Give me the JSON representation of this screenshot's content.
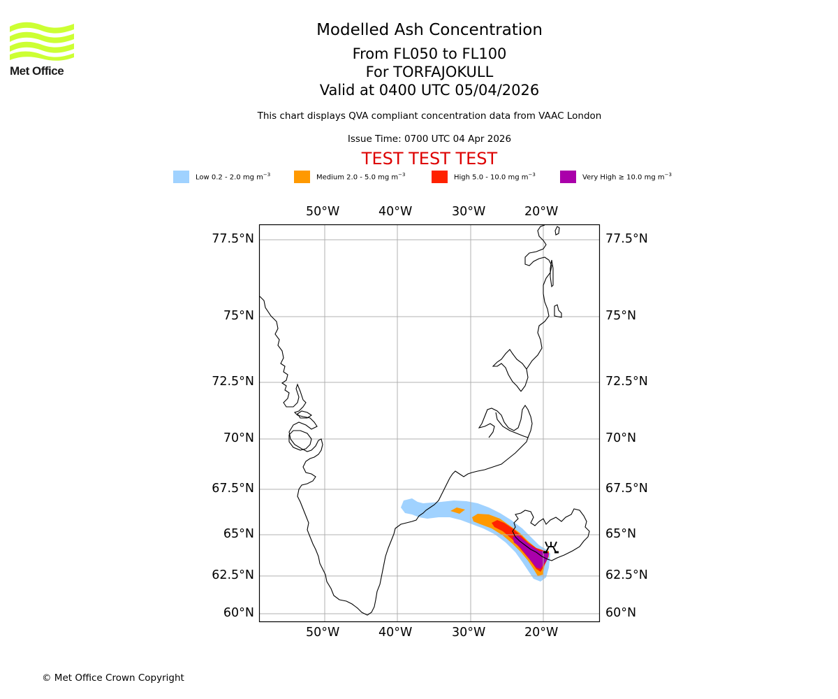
{
  "logo": {
    "name": "Met Office",
    "text": "Met Office",
    "color": "#ccff33"
  },
  "header": {
    "title": "Modelled Ash Concentration",
    "flight_levels": "From FL050 to FL100",
    "volcano": "For TORFAJOKULL",
    "valid_time": "Valid at 0400 UTC 05/04/2026",
    "description": "This chart displays QVA compliant concentration data from VAAC London",
    "issue_time": "Issue Time: 0700 UTC 04 Apr 2026",
    "test_banner": "TEST TEST TEST",
    "test_banner_color": "#dd0000"
  },
  "legend": [
    {
      "name": "Low",
      "range": "Low 0.2 - 2.0 mg m",
      "unit_exp": "−3",
      "color": "#a0d2ff"
    },
    {
      "name": "Medium",
      "range": "Medium 2.0 - 5.0 mg m",
      "unit_exp": "−3",
      "color": "#ff9900"
    },
    {
      "name": "High",
      "range": "High 5.0 - 10.0 mg m",
      "unit_exp": "−3",
      "color": "#ff2200"
    },
    {
      "name": "Very High",
      "range": "Very High  ≥  10.0 mg m",
      "unit_exp": "−3",
      "color": "#aa00aa"
    }
  ],
  "map": {
    "lon_ticks": [
      "50°W",
      "40°W",
      "30°W",
      "20°W"
    ],
    "lon_values": [
      -50,
      -40,
      -30,
      -20
    ],
    "lat_ticks": [
      "77.5°N",
      "75°N",
      "72.5°N",
      "70°N",
      "67.5°N",
      "65°N",
      "62.5°N",
      "60°N"
    ],
    "lat_values": [
      77.5,
      75,
      72.5,
      70,
      67.5,
      65,
      62.5,
      60
    ],
    "gridline_color": "#b0b0b0",
    "volcano_symbol": "volcano-icon",
    "volcano_location": {
      "lat": 63.9,
      "lon": -19.1
    }
  },
  "footer": {
    "copyright": "© Met Office Crown Copyright"
  }
}
